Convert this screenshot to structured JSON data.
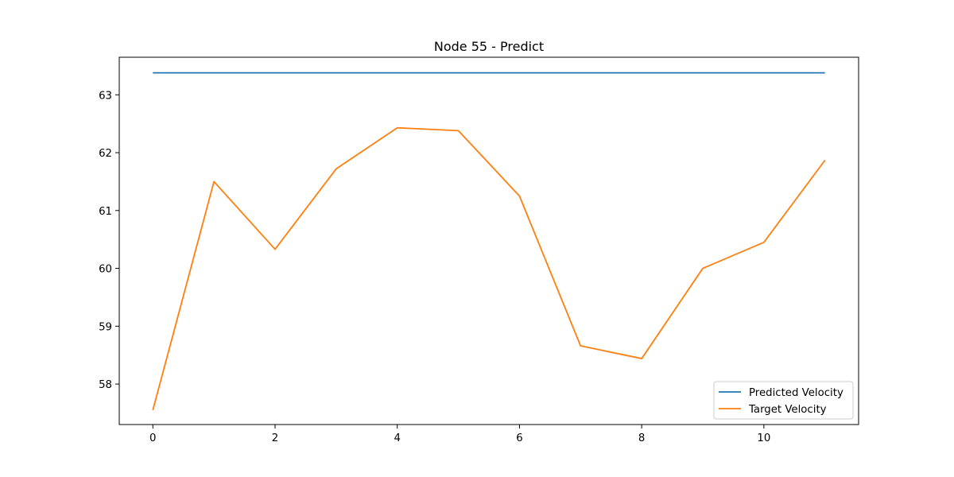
{
  "chart_data": {
    "type": "line",
    "title": "Node 55 - Predict",
    "xlabel": "",
    "ylabel": "",
    "x": [
      0,
      1,
      2,
      3,
      4,
      5,
      6,
      7,
      8,
      9,
      10,
      11
    ],
    "series": [
      {
        "name": "Predicted Velocity",
        "color": "#1f77b4",
        "values": [
          63.38,
          63.38,
          63.38,
          63.38,
          63.38,
          63.38,
          63.38,
          63.38,
          63.38,
          63.38,
          63.38,
          63.38
        ]
      },
      {
        "name": "Target Velocity",
        "color": "#ff7f0e",
        "values": [
          57.55,
          61.5,
          60.33,
          61.72,
          62.43,
          62.38,
          61.25,
          58.66,
          58.44,
          60.0,
          60.45,
          61.87
        ]
      }
    ],
    "xlim": [
      -0.55,
      11.55
    ],
    "ylim": [
      57.3,
      63.65
    ],
    "xticks": [
      0,
      2,
      4,
      6,
      8,
      10
    ],
    "yticks": [
      58,
      59,
      60,
      61,
      62,
      63
    ],
    "grid": false,
    "legend_position": "lower-right"
  }
}
